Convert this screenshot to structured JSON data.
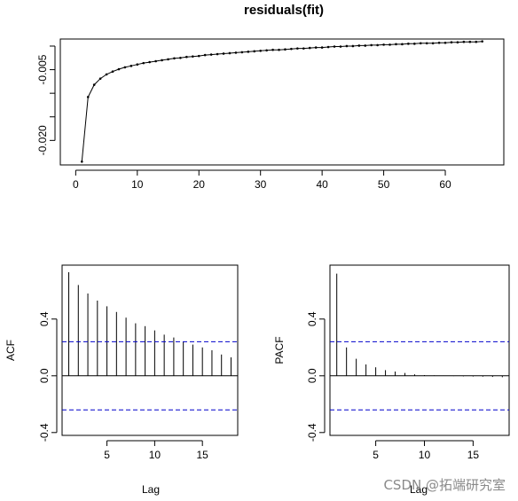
{
  "chart_data": [
    {
      "type": "line",
      "title": "residuals(fit)",
      "xlabel": "",
      "ylabel": "",
      "x": [
        1,
        2,
        3,
        4,
        5,
        6,
        7,
        8,
        9,
        10,
        11,
        12,
        13,
        14,
        15,
        16,
        17,
        18,
        19,
        20,
        21,
        22,
        23,
        24,
        25,
        26,
        27,
        28,
        29,
        30,
        31,
        32,
        33,
        34,
        35,
        36,
        37,
        38,
        39,
        40,
        41,
        42,
        43,
        44,
        45,
        46,
        47,
        48,
        49,
        50,
        51,
        52,
        53,
        54,
        55,
        56,
        57,
        58,
        59,
        60,
        61,
        62,
        63,
        64,
        65,
        66
      ],
      "y": [
        -0.0245,
        -0.0108,
        -0.0082,
        -0.0069,
        -0.006,
        -0.0054,
        -0.0049,
        -0.0045,
        -0.0042,
        -0.0039,
        -0.0036,
        -0.0034,
        -0.0032,
        -0.003,
        -0.0028,
        -0.0026,
        -0.0025,
        -0.0023,
        -0.0022,
        -0.0021,
        -0.0019,
        -0.0018,
        -0.0017,
        -0.0016,
        -0.0015,
        -0.0014,
        -0.0013,
        -0.0012,
        -0.0011,
        -0.001,
        -0.0009,
        -0.0008,
        -0.0008,
        -0.0007,
        -0.0006,
        -0.0005,
        -0.0005,
        -0.0004,
        -0.0003,
        -0.0003,
        -0.0002,
        -0.0001,
        -0.0001,
        0.0,
        0.0,
        0.0001,
        0.0001,
        0.0002,
        0.0002,
        0.0003,
        0.0003,
        0.0004,
        0.0004,
        0.0005,
        0.0005,
        0.0006,
        0.0006,
        0.0006,
        0.0007,
        0.0007,
        0.0008,
        0.0008,
        0.0009,
        0.0009,
        0.0009,
        0.001
      ],
      "xticks": [
        0,
        10,
        20,
        30,
        40,
        50,
        60
      ],
      "yticks": [
        -0.02,
        -0.005
      ],
      "ytick_labels": [
        "-0.020",
        "-0.005"
      ],
      "xlim": [
        -2.5,
        69.5
      ],
      "ylim": [
        -0.0252,
        0.0015
      ],
      "grid": false,
      "color": "#000000"
    },
    {
      "type": "bar",
      "title": "",
      "xlabel": "Lag",
      "ylabel": "ACF",
      "lags": [
        1,
        2,
        3,
        4,
        5,
        6,
        7,
        8,
        9,
        10,
        11,
        12,
        13,
        14,
        15,
        16,
        17,
        18
      ],
      "values": [
        0.73,
        0.64,
        0.58,
        0.53,
        0.49,
        0.45,
        0.41,
        0.37,
        0.35,
        0.32,
        0.29,
        0.27,
        0.24,
        0.22,
        0.2,
        0.18,
        0.15,
        0.13
      ],
      "ci": 0.24,
      "xticks": [
        5,
        10,
        15
      ],
      "yticks": [
        -0.4,
        0.0,
        0.4
      ],
      "ytick_labels": [
        "-0.4",
        "0.0",
        "0.4"
      ],
      "xlim": [
        0.3,
        18.7
      ],
      "ylim": [
        -0.42,
        0.78
      ],
      "ci_color": "#0000cc",
      "grid": false
    },
    {
      "type": "bar",
      "title": "",
      "xlabel": "Lag",
      "ylabel": "PACF",
      "lags": [
        1,
        2,
        3,
        4,
        5,
        6,
        7,
        8,
        9,
        10,
        11,
        12,
        13,
        14,
        15,
        16,
        17,
        18
      ],
      "values": [
        0.72,
        0.2,
        0.12,
        0.08,
        0.06,
        0.04,
        0.03,
        0.02,
        0.01,
        0.005,
        0.003,
        0.002,
        -0.002,
        -0.004,
        -0.005,
        -0.006,
        -0.008,
        -0.01
      ],
      "ci": 0.24,
      "xticks": [
        5,
        10,
        15
      ],
      "yticks": [
        -0.4,
        0.0,
        0.4
      ],
      "ytick_labels": [
        "-0.4",
        "0.0",
        "0.4"
      ],
      "xlim": [
        0.3,
        18.7
      ],
      "ylim": [
        -0.42,
        0.78
      ],
      "ci_color": "#0000cc",
      "grid": false
    }
  ],
  "watermark": "CSDN @拓端研究室"
}
